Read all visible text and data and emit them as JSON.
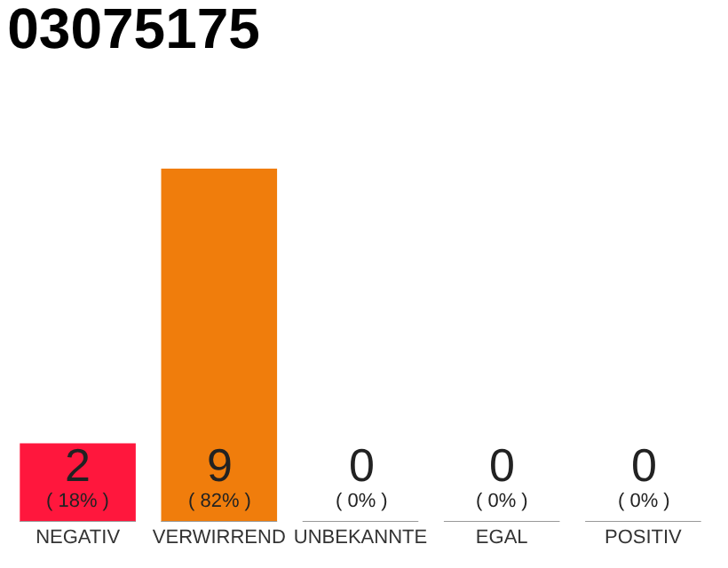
{
  "chart_data": {
    "type": "bar",
    "title": "03075175",
    "categories": [
      "NEGATIV",
      "VERWIRREND",
      "UNBEKANNTE",
      "EGAL",
      "POSITIV"
    ],
    "values": [
      2,
      9,
      0,
      0,
      0
    ],
    "colors": [
      "#ff173d",
      "#f07d0c",
      "#eeeeee",
      "#eeeeee",
      "#eeeeee"
    ],
    "ylim": [
      0,
      9
    ],
    "tick_labels": "x",
    "grid": false,
    "value_labels": [
      "2\n( 18% )",
      "9\n( 82% )",
      "0\n( 0% )",
      "0\n( 0% )",
      "0\n( 0% )"
    ]
  }
}
